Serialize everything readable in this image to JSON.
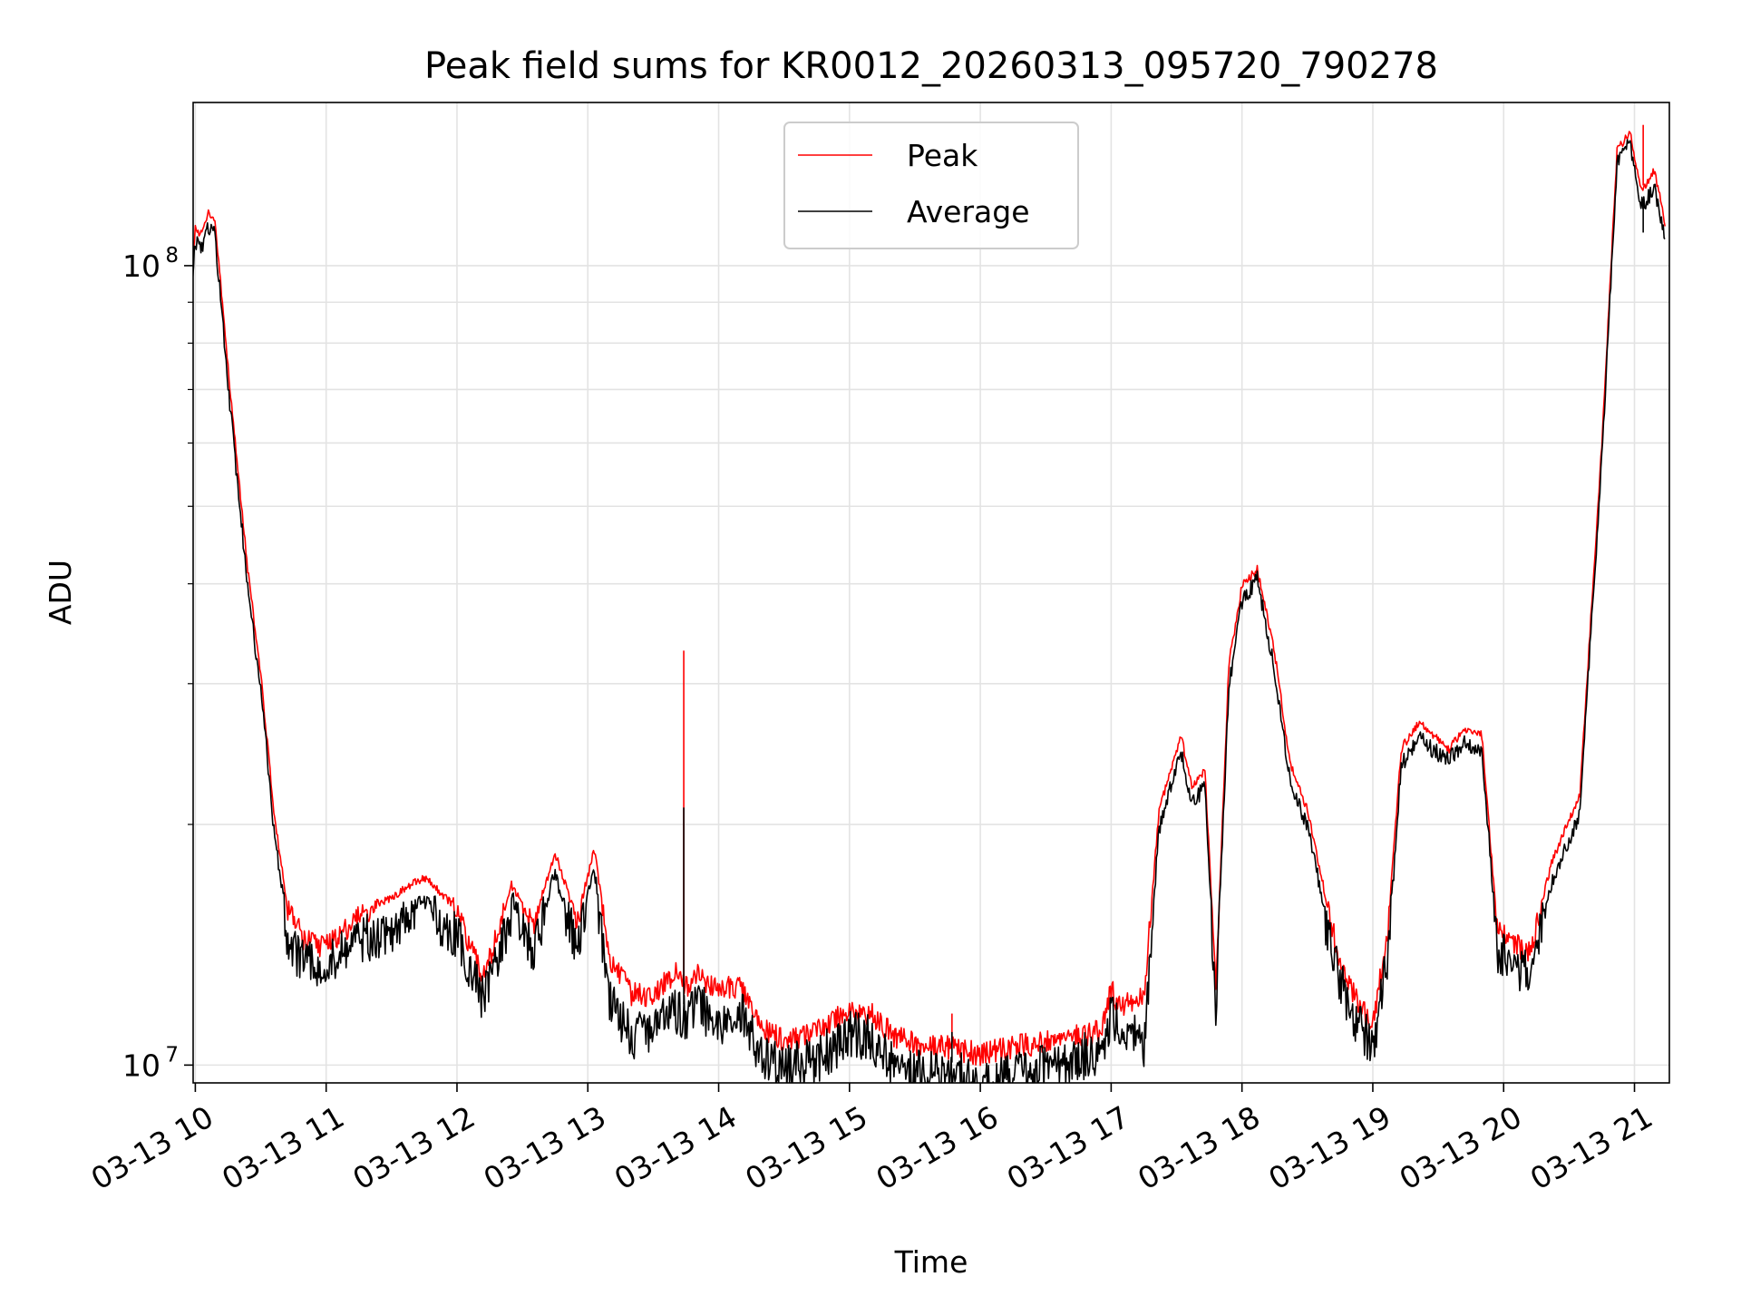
{
  "chart_data": {
    "type": "line",
    "title": "Peak field sums for KR0012_20260313_095720_790278",
    "xlabel": "Time",
    "ylabel": "ADU",
    "yscale": "log",
    "ylim": [
      9500000,
      160000000
    ],
    "xlim": [
      "2026-03-13 09:59",
      "2026-03-13 21:16"
    ],
    "grid": true,
    "legend_position": "top-center",
    "x_tick_labels": [
      "03-13 10",
      "03-13 11",
      "03-13 12",
      "03-13 13",
      "03-13 14",
      "03-13 15",
      "03-13 16",
      "03-13 17",
      "03-13 18",
      "03-13 19",
      "03-13 20",
      "03-13 21"
    ],
    "y_tick_labels": [
      {
        "value": 10000000,
        "base": "10",
        "exp": "7"
      },
      {
        "value": 100000000,
        "base": "10",
        "exp": "8"
      }
    ],
    "series": [
      {
        "name": "Peak",
        "color": "#ff0000"
      },
      {
        "name": "Average",
        "color": "#000000"
      }
    ],
    "x": [
      "2026-03-13 09:58",
      "2026-03-13 10:00",
      "2026-03-13 10:03",
      "2026-03-13 10:06",
      "2026-03-13 10:09",
      "2026-03-13 10:15",
      "2026-03-13 10:24",
      "2026-03-13 10:30",
      "2026-03-13 10:36",
      "2026-03-13 10:42",
      "2026-03-13 10:50",
      "2026-03-13 11:00",
      "2026-03-13 11:15",
      "2026-03-13 11:30",
      "2026-03-13 11:45",
      "2026-03-13 12:00",
      "2026-03-13 12:12",
      "2026-03-13 12:25",
      "2026-03-13 12:35",
      "2026-03-13 12:45",
      "2026-03-13 12:55",
      "2026-03-13 13:03",
      "2026-03-13 13:10",
      "2026-03-13 13:20",
      "2026-03-13 13:30",
      "2026-03-13 13:40",
      "2026-03-13 13:45",
      "2026-03-13 13:50",
      "2026-03-13 14:00",
      "2026-03-13 14:10",
      "2026-03-13 14:20",
      "2026-03-13 14:30",
      "2026-03-13 14:45",
      "2026-03-13 15:00",
      "2026-03-13 15:10",
      "2026-03-13 15:20",
      "2026-03-13 15:30",
      "2026-03-13 15:45",
      "2026-03-13 16:00",
      "2026-03-13 16:15",
      "2026-03-13 16:30",
      "2026-03-13 16:45",
      "2026-03-13 16:55",
      "2026-03-13 17:00",
      "2026-03-13 17:05",
      "2026-03-13 17:10",
      "2026-03-13 17:15",
      "2026-03-13 17:22",
      "2026-03-13 17:32",
      "2026-03-13 17:37",
      "2026-03-13 17:43",
      "2026-03-13 17:48",
      "2026-03-13 17:54",
      "2026-03-13 18:00",
      "2026-03-13 18:07",
      "2026-03-13 18:15",
      "2026-03-13 18:22",
      "2026-03-13 18:30",
      "2026-03-13 18:38",
      "2026-03-13 18:45",
      "2026-03-13 18:52",
      "2026-03-13 19:00",
      "2026-03-13 19:07",
      "2026-03-13 19:13",
      "2026-03-13 19:21",
      "2026-03-13 19:28",
      "2026-03-13 19:35",
      "2026-03-13 19:42",
      "2026-03-13 19:50",
      "2026-03-13 19:57",
      "2026-03-13 20:04",
      "2026-03-13 20:12",
      "2026-03-13 20:22",
      "2026-03-13 20:35",
      "2026-03-13 20:45",
      "2026-03-13 20:52",
      "2026-03-13 20:58",
      "2026-03-13 21:03",
      "2026-03-13 21:06",
      "2026-03-13 21:09",
      "2026-03-13 21:12",
      "2026-03-13 21:14"
    ],
    "peak": [
      96000000,
      112000000,
      110000000,
      117000000,
      115000000,
      75000000,
      42000000,
      31000000,
      21000000,
      16000000,
      14600000,
      14300000,
      15600000,
      16300000,
      17300000,
      15800000,
      13000000,
      16900000,
      15200000,
      18500000,
      15300000,
      18700000,
      13800000,
      12500000,
      12400000,
      13300000,
      12700000,
      13200000,
      12600000,
      12800000,
      11300000,
      10900000,
      11200000,
      11900000,
      11800000,
      11100000,
      10800000,
      10700000,
      10500000,
      10700000,
      10900000,
      11100000,
      11200000,
      12600000,
      12000000,
      12200000,
      12300000,
      21000000,
      26000000,
      22500000,
      23500000,
      12800000,
      32000000,
      40000000,
      42000000,
      33000000,
      24000000,
      21000000,
      16500000,
      13700000,
      12300000,
      11500000,
      15000000,
      25000000,
      27000000,
      26000000,
      25000000,
      26500000,
      26000000,
      15000000,
      14500000,
      14000000,
      18000000,
      22000000,
      60000000,
      140000000,
      148000000,
      125000000,
      128000000,
      132000000,
      122000000,
      112000000
    ],
    "average": [
      93000000,
      108000000,
      106000000,
      113000000,
      111000000,
      72000000,
      40000000,
      30000000,
      20000000,
      15000000,
      13800000,
      13700000,
      14800000,
      15300000,
      16300000,
      15000000,
      12500000,
      16000000,
      14500000,
      17500000,
      14600000,
      17700000,
      12500000,
      11200000,
      11600000,
      12000000,
      11900000,
      12300000,
      11700000,
      12100000,
      10500000,
      10300000,
      10500000,
      11300000,
      11200000,
      10400000,
      10100000,
      10100000,
      9900000,
      10100000,
      10300000,
      10600000,
      10700000,
      12000000,
      11300000,
      11500000,
      11000000,
      20000000,
      25000000,
      21500000,
      22500000,
      12300000,
      30000000,
      38500000,
      41000000,
      31500000,
      23000000,
      20000000,
      15800000,
      13200000,
      11800000,
      11000000,
      14000000,
      24000000,
      26000000,
      25000000,
      24500000,
      25500000,
      25200000,
      14400000,
      13800000,
      13500000,
      17000000,
      21000000,
      58000000,
      136000000,
      144000000,
      120000000,
      123000000,
      127000000,
      117000000,
      108000000
    ],
    "spikes": [
      {
        "time": "2026-03-13 13:44",
        "peak": 33000000,
        "average": 21000000
      },
      {
        "time": "2026-03-13 15:47",
        "peak": 11600000,
        "average": 11000000
      },
      {
        "time": "2026-03-13 21:04",
        "peak": 150000000,
        "average": 110000000
      }
    ]
  }
}
